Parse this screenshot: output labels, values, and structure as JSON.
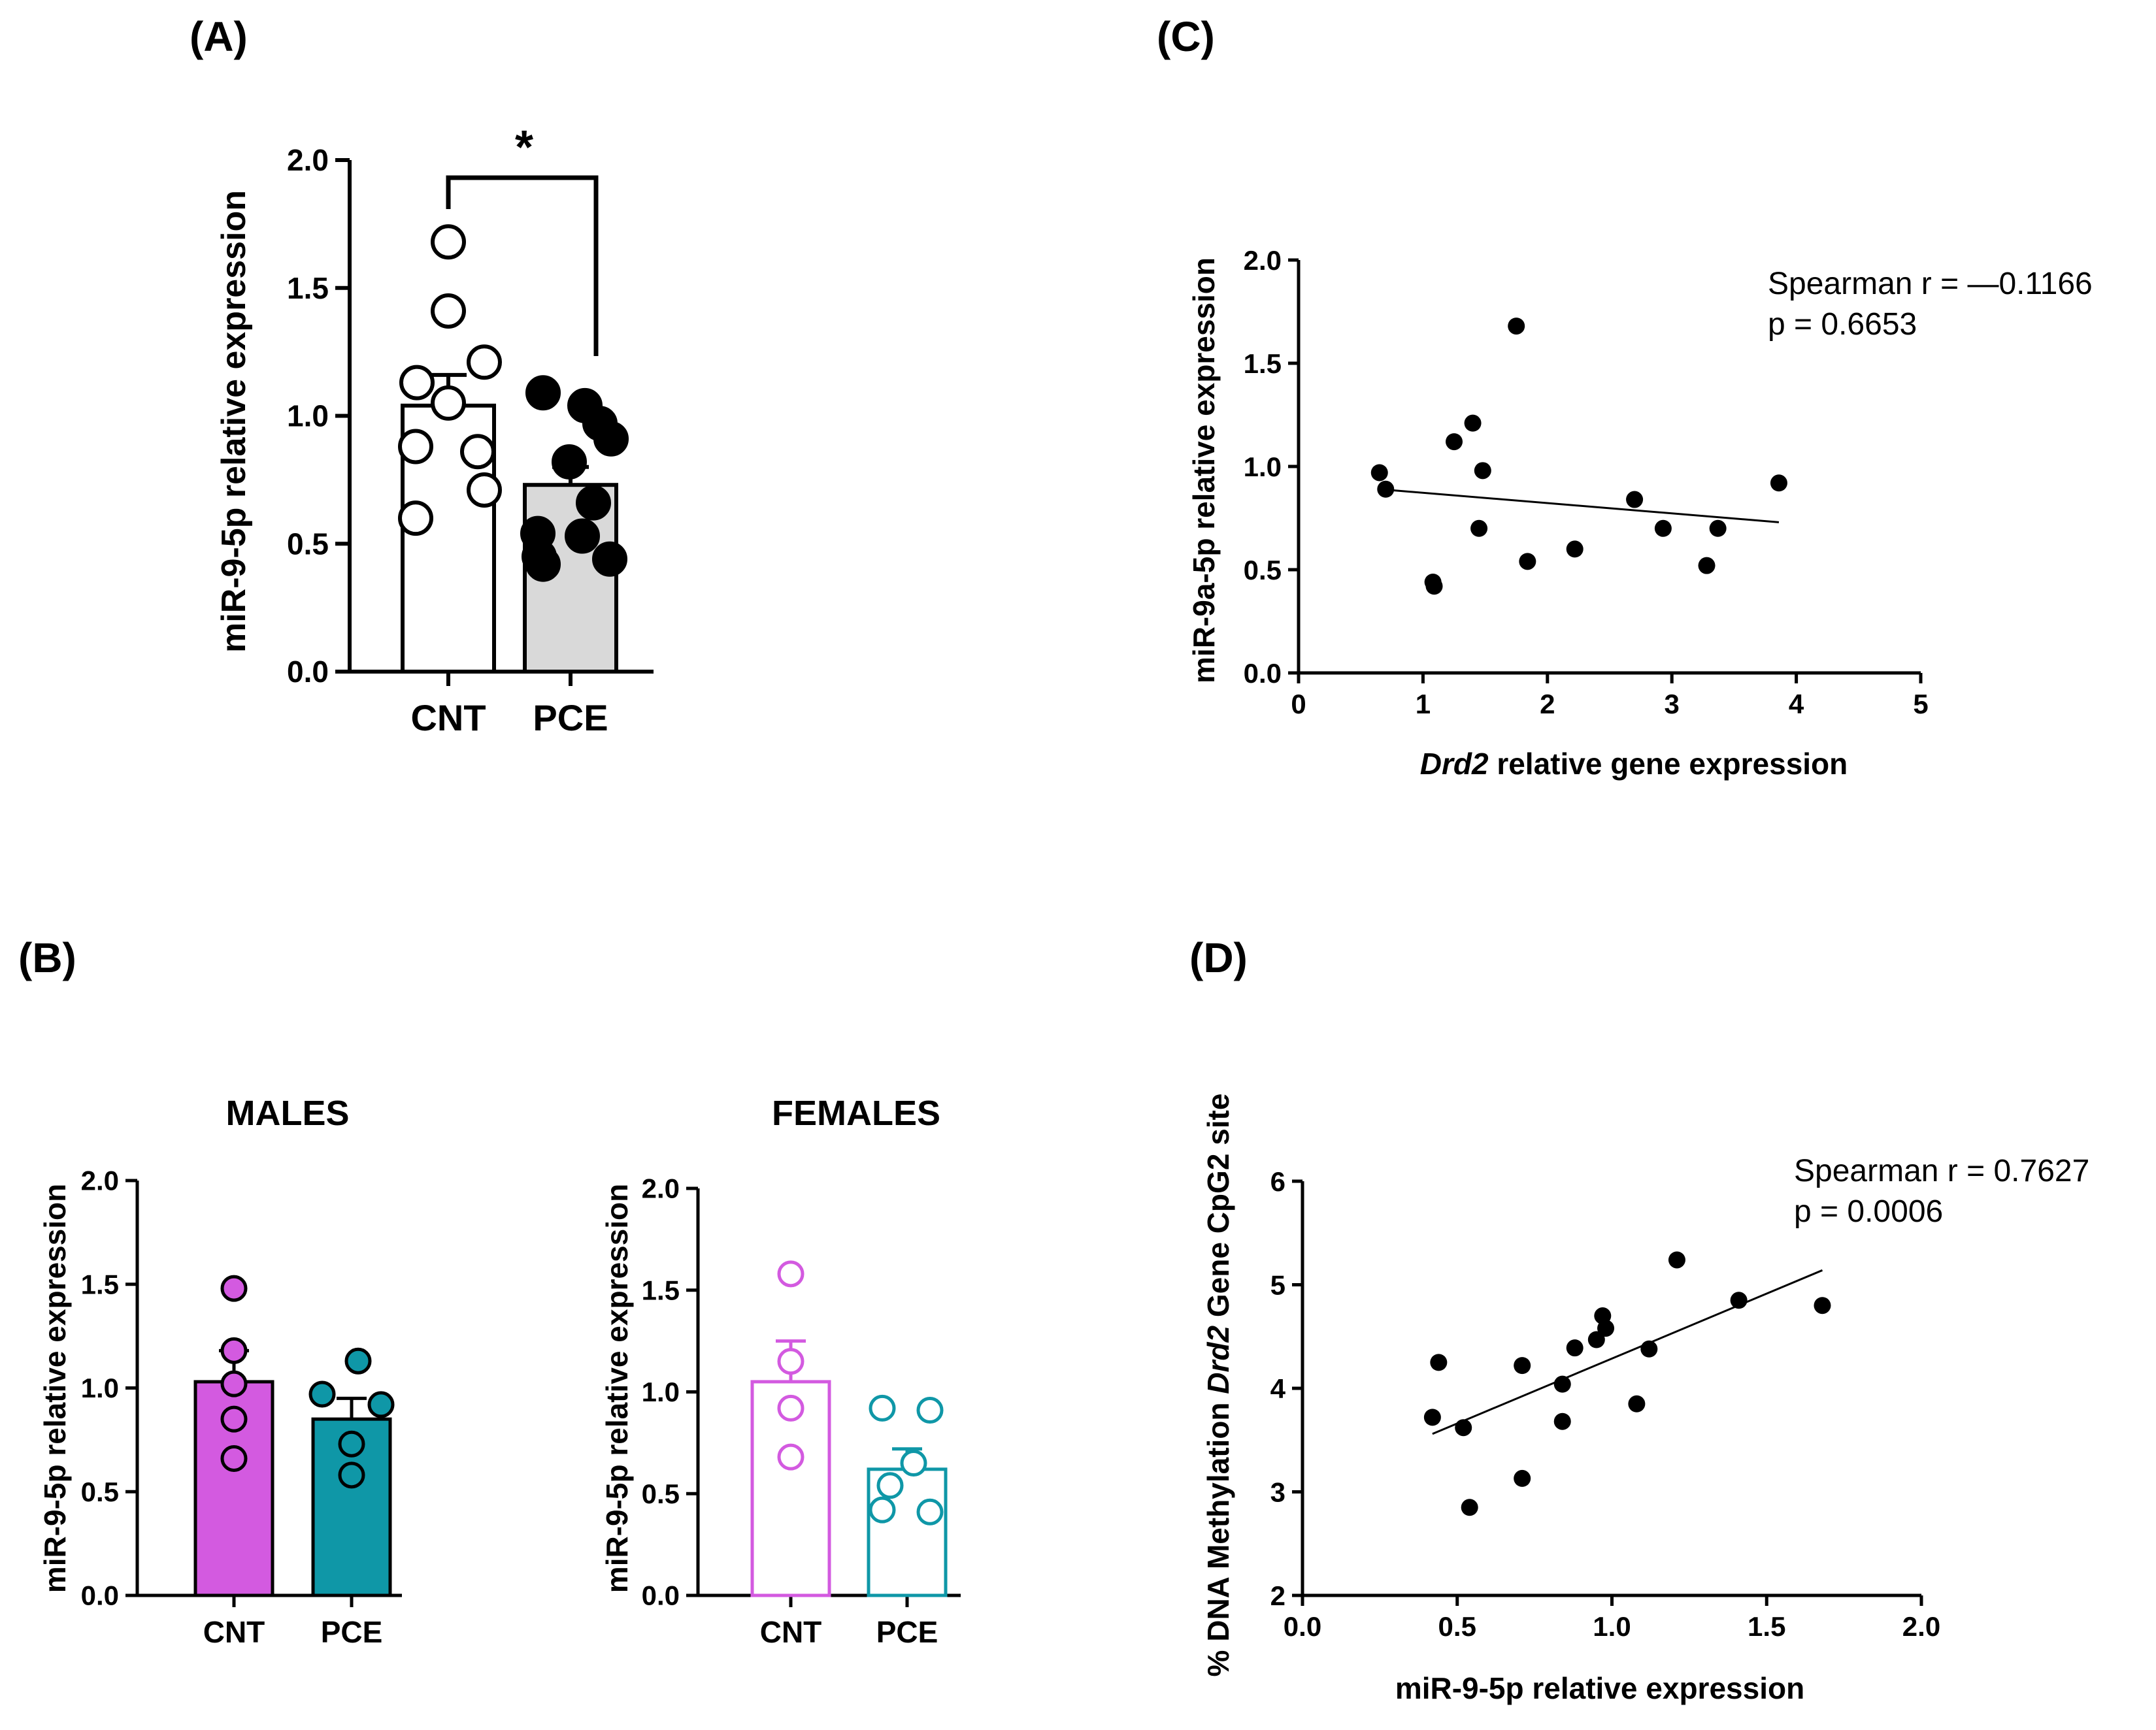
{
  "chart_data": [
    {
      "panel": "(A)",
      "type": "bar",
      "ylabel": "miR-9-5p relative expression",
      "ylim": [
        0,
        2.0
      ],
      "yticks": [
        "0.0",
        "0.5",
        "1.0",
        "1.5",
        "2.0"
      ],
      "categories": [
        "CNT",
        "PCE"
      ],
      "series": [
        {
          "name": "CNT",
          "mean": 1.04,
          "sem": 0.12,
          "fill": "#ffffff",
          "point_fill": "#ffffff",
          "points": [
            1.68,
            1.41,
            1.21,
            1.13,
            1.05,
            0.88,
            0.86,
            0.71,
            0.6
          ]
        },
        {
          "name": "PCE",
          "mean": 0.73,
          "sem": 0.07,
          "fill": "#d9d9d9",
          "point_fill": "#000000",
          "points": [
            1.09,
            1.04,
            0.97,
            0.91,
            0.82,
            0.66,
            0.54,
            0.53,
            0.45,
            0.44,
            0.42
          ]
        }
      ],
      "significance": "*"
    },
    {
      "panel": "(B)",
      "type": "bar",
      "title": "MALES",
      "ylabel": "miR-9-5p relative expression",
      "ylim": [
        0,
        2.0
      ],
      "yticks": [
        "0.0",
        "0.5",
        "1.0",
        "1.5",
        "2.0"
      ],
      "categories": [
        "CNT",
        "PCE"
      ],
      "series": [
        {
          "name": "CNT",
          "mean": 1.03,
          "sem": 0.15,
          "fill": "#d35ae0",
          "point_fill": "#d35ae0",
          "stroke": "#000000",
          "points": [
            1.48,
            1.18,
            1.02,
            0.85,
            0.66
          ]
        },
        {
          "name": "PCE",
          "mean": 0.85,
          "sem": 0.1,
          "fill": "#0f97a7",
          "point_fill": "#0f97a7",
          "stroke": "#000000",
          "points": [
            1.13,
            0.97,
            0.92,
            0.73,
            0.58
          ]
        }
      ]
    },
    {
      "panel": "(B)",
      "type": "bar",
      "title": "FEMALES",
      "ylabel": "miR-9-5p relative expression",
      "ylim": [
        0,
        2.0
      ],
      "yticks": [
        "0.0",
        "0.5",
        "1.0",
        "1.5",
        "2.0"
      ],
      "categories": [
        "CNT",
        "PCE"
      ],
      "series": [
        {
          "name": "CNT",
          "mean": 1.05,
          "sem": 0.2,
          "fill": "#ffffff",
          "point_fill": "#ffffff",
          "stroke": "#d35ae0",
          "points": [
            1.58,
            1.15,
            0.92,
            0.68
          ]
        },
        {
          "name": "PCE",
          "mean": 0.62,
          "sem": 0.1,
          "fill": "#ffffff",
          "point_fill": "#ffffff",
          "stroke": "#0f97a7",
          "points": [
            0.92,
            0.91,
            0.65,
            0.54,
            0.42,
            0.41
          ]
        }
      ]
    },
    {
      "panel": "(C)",
      "type": "scatter",
      "xlabel_italic": "Drd2",
      "xlabel_rest": " relative gene expression",
      "ylabel": "miR-9a-5p relative expression",
      "xlim": [
        0,
        5
      ],
      "ylim": [
        0,
        2.0
      ],
      "xticks": [
        "0",
        "1",
        "2",
        "3",
        "4",
        "5"
      ],
      "yticks": [
        "0.0",
        "0.5",
        "1.0",
        "1.5",
        "2.0"
      ],
      "points": [
        [
          0.65,
          0.97
        ],
        [
          0.7,
          0.89
        ],
        [
          1.08,
          0.44
        ],
        [
          1.09,
          0.42
        ],
        [
          1.25,
          1.12
        ],
        [
          1.4,
          1.21
        ],
        [
          1.45,
          0.7
        ],
        [
          1.48,
          0.98
        ],
        [
          1.75,
          1.68
        ],
        [
          1.84,
          0.54
        ],
        [
          2.22,
          0.6
        ],
        [
          2.7,
          0.84
        ],
        [
          2.93,
          0.7
        ],
        [
          3.28,
          0.52
        ],
        [
          3.37,
          0.7
        ],
        [
          3.86,
          0.92
        ]
      ],
      "trendline": [
        [
          0.65,
          0.89
        ],
        [
          3.86,
          0.73
        ]
      ],
      "annotation": [
        "Spearman r = —0.1166",
        "p =  0.6653"
      ]
    },
    {
      "panel": "(D)",
      "type": "scatter",
      "xlabel": "miR-9-5p relative expression",
      "ylabel_pre": "% DNA Methylation ",
      "ylabel_italic": "Drd2",
      "ylabel_post": " Gene CpG2 site",
      "xlim": [
        0.0,
        2.0
      ],
      "ylim": [
        2,
        6
      ],
      "xticks": [
        "0.0",
        "0.5",
        "1.0",
        "1.5",
        "2.0"
      ],
      "yticks": [
        "2",
        "3",
        "4",
        "5",
        "6"
      ],
      "points": [
        [
          0.42,
          3.72
        ],
        [
          0.44,
          4.25
        ],
        [
          0.52,
          3.62
        ],
        [
          0.54,
          2.85
        ],
        [
          0.71,
          4.22
        ],
        [
          0.71,
          3.13
        ],
        [
          0.84,
          4.04
        ],
        [
          0.84,
          3.68
        ],
        [
          0.88,
          4.39
        ],
        [
          0.95,
          4.47
        ],
        [
          0.97,
          4.7
        ],
        [
          0.98,
          4.58
        ],
        [
          1.08,
          3.85
        ],
        [
          1.12,
          4.38
        ],
        [
          1.21,
          5.24
        ],
        [
          1.41,
          4.85
        ],
        [
          1.68,
          4.8
        ]
      ],
      "trendline": [
        [
          0.42,
          3.56
        ],
        [
          1.68,
          5.14
        ]
      ],
      "annotation": [
        "Spearman r = 0.7627",
        "p =  0.0006"
      ]
    }
  ]
}
